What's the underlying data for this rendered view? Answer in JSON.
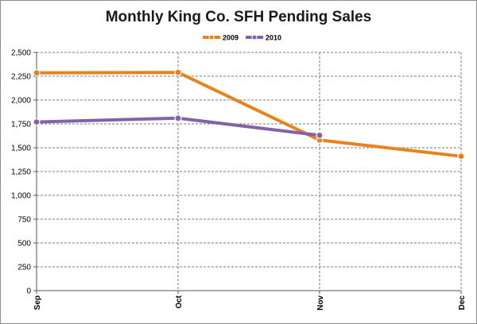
{
  "chart_data": {
    "type": "line",
    "title": "Monthly King Co. SFH Pending Sales",
    "categories": [
      "Sep",
      "Oct",
      "Nov",
      "Dec"
    ],
    "series": [
      {
        "name": "2009",
        "color": "#e8821e",
        "values": [
          2285,
          2290,
          1580,
          1410
        ]
      },
      {
        "name": "2010",
        "color": "#8462a8",
        "values": [
          1770,
          1810,
          1630,
          null
        ]
      }
    ],
    "ylim": [
      0,
      2500
    ],
    "yticks": [
      "0",
      "250",
      "500",
      "750",
      "1,000",
      "1,250",
      "1,500",
      "1,750",
      "2,000",
      "2,250",
      "2,500"
    ],
    "grid": true,
    "legend": "top-center"
  }
}
